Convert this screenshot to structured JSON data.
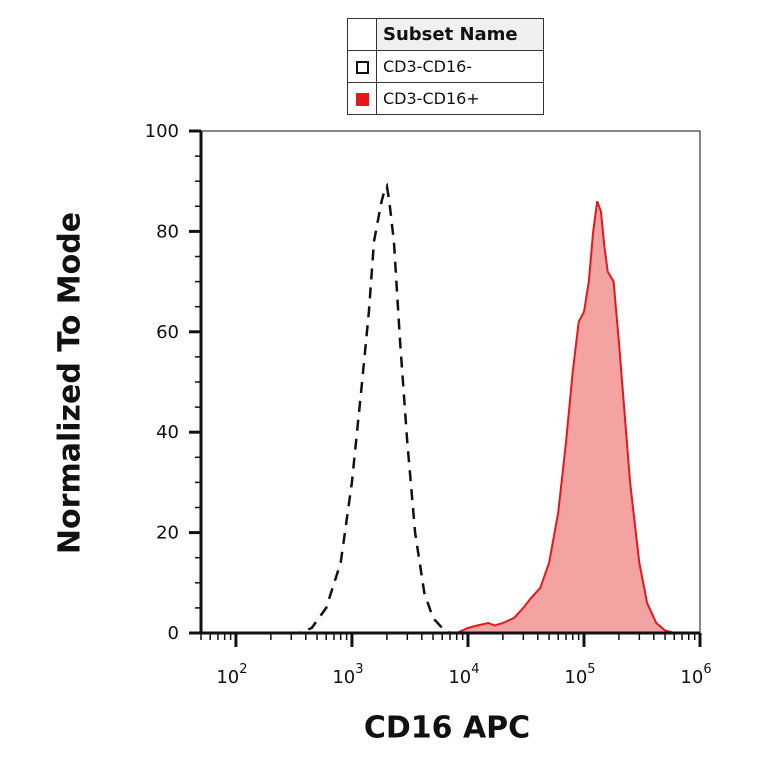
{
  "chart_data": {
    "type": "histogram",
    "title": "",
    "xlabel": "CD16 APC",
    "ylabel": "Normalized To Mode",
    "x_scale": "log",
    "xlim": [
      50,
      1000000
    ],
    "ylim": [
      0,
      100
    ],
    "x_ticks": [
      {
        "base": "10",
        "exp": "2",
        "value": 100
      },
      {
        "base": "10",
        "exp": "3",
        "value": 1000
      },
      {
        "base": "10",
        "exp": "4",
        "value": 10000
      },
      {
        "base": "10",
        "exp": "5",
        "value": 100000
      },
      {
        "base": "10",
        "exp": "6",
        "value": 1000000
      }
    ],
    "y_ticks": [
      "0",
      "20",
      "40",
      "60",
      "80",
      "100"
    ],
    "legend": {
      "header": "Subset Name",
      "placement": "top-center"
    },
    "series": [
      {
        "name": "CD3-CD16-",
        "style": "dashed-outline",
        "color": "#111111",
        "fill": "none",
        "points": [
          [
            200,
            0
          ],
          [
            350,
            0
          ],
          [
            450,
            1
          ],
          [
            600,
            5
          ],
          [
            800,
            14
          ],
          [
            1000,
            30
          ],
          [
            1200,
            48
          ],
          [
            1400,
            64
          ],
          [
            1550,
            78
          ],
          [
            1700,
            83
          ],
          [
            1800,
            86
          ],
          [
            1900,
            88
          ],
          [
            2000,
            89
          ],
          [
            2100,
            86
          ],
          [
            2300,
            78
          ],
          [
            2600,
            58
          ],
          [
            3000,
            38
          ],
          [
            3500,
            20
          ],
          [
            4200,
            8
          ],
          [
            5000,
            3
          ],
          [
            6000,
            1
          ],
          [
            7000,
            0
          ],
          [
            8000,
            0
          ]
        ]
      },
      {
        "name": "CD3-CD16+",
        "style": "filled",
        "color": "#e8161b",
        "fill": "#f4a3a3",
        "points": [
          [
            60,
            0
          ],
          [
            8000,
            0
          ],
          [
            10000,
            1
          ],
          [
            12000,
            1.5
          ],
          [
            15000,
            2
          ],
          [
            17000,
            1.5
          ],
          [
            20000,
            2
          ],
          [
            25000,
            3
          ],
          [
            30000,
            5
          ],
          [
            35000,
            7
          ],
          [
            42000,
            9
          ],
          [
            50000,
            14
          ],
          [
            60000,
            24
          ],
          [
            70000,
            38
          ],
          [
            80000,
            52
          ],
          [
            90000,
            62
          ],
          [
            100000,
            64
          ],
          [
            110000,
            70
          ],
          [
            120000,
            80
          ],
          [
            130000,
            86
          ],
          [
            140000,
            84
          ],
          [
            150000,
            77
          ],
          [
            160000,
            72
          ],
          [
            180000,
            70
          ],
          [
            200000,
            58
          ],
          [
            250000,
            30
          ],
          [
            300000,
            14
          ],
          [
            350000,
            6
          ],
          [
            420000,
            2
          ],
          [
            500000,
            0.5
          ],
          [
            600000,
            0
          ],
          [
            1000000,
            0
          ]
        ]
      }
    ]
  }
}
